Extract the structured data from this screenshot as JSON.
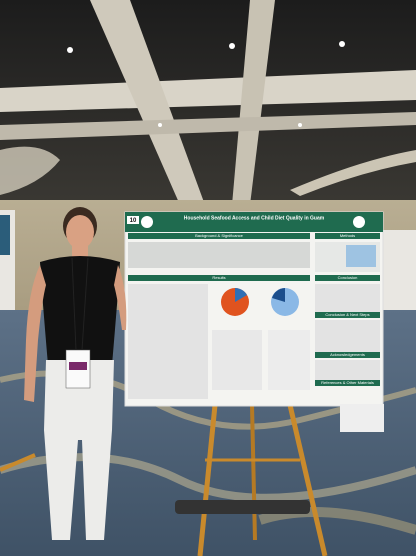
{
  "sign": "10",
  "poster": {
    "title": "Household Seafood Access and Child Diet Quality in Guam",
    "sections": [
      "Background & Significance",
      "Methods",
      "Results",
      "Conclusion",
      "Conclusion & Next Steps",
      "Acknowledgements",
      "References & Other Materials"
    ]
  }
}
